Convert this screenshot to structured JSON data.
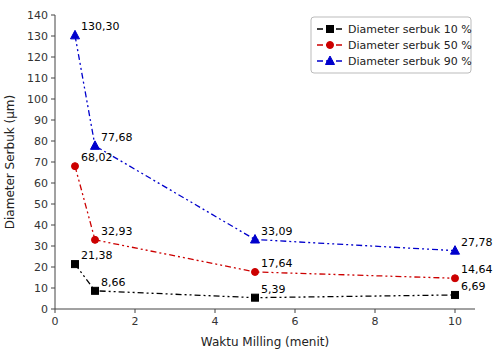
{
  "chart_data": {
    "type": "line",
    "xlabel": "Waktu Milling (menit)",
    "ylabel": "Diameter Serbuk (µm)",
    "x": [
      0.5,
      1,
      5,
      10
    ],
    "series": [
      {
        "name": "Diameter serbuk 10 %",
        "color": "#000000",
        "marker": "square",
        "line_style": "dashdot",
        "values": [
          21.38,
          8.66,
          5.39,
          6.69
        ],
        "value_labels": [
          "21,38",
          "8,66",
          "5,39",
          "6,69"
        ]
      },
      {
        "name": "Diameter serbuk 50 %",
        "color": "#cc0000",
        "marker": "circle",
        "line_style": "dashdot",
        "values": [
          68.02,
          32.93,
          17.64,
          14.64
        ],
        "value_labels": [
          "68,02",
          "32,93",
          "17,64",
          "14,64"
        ]
      },
      {
        "name": "Diameter serbuk 90 %",
        "color": "#0000cc",
        "marker": "triangle",
        "line_style": "dashdot",
        "values": [
          130.3,
          77.68,
          33.09,
          27.78
        ],
        "value_labels": [
          "130,30",
          "77,68",
          "33,09",
          "27,78"
        ]
      }
    ],
    "xlim": [
      0,
      10.5
    ],
    "ylim": [
      0,
      140
    ],
    "xticks": [
      0,
      2,
      4,
      6,
      8,
      10
    ],
    "yticks": [
      0,
      10,
      20,
      30,
      40,
      50,
      60,
      70,
      80,
      90,
      100,
      110,
      120,
      130,
      140
    ],
    "grid": false,
    "legend": "upper right",
    "data_labels": true
  }
}
